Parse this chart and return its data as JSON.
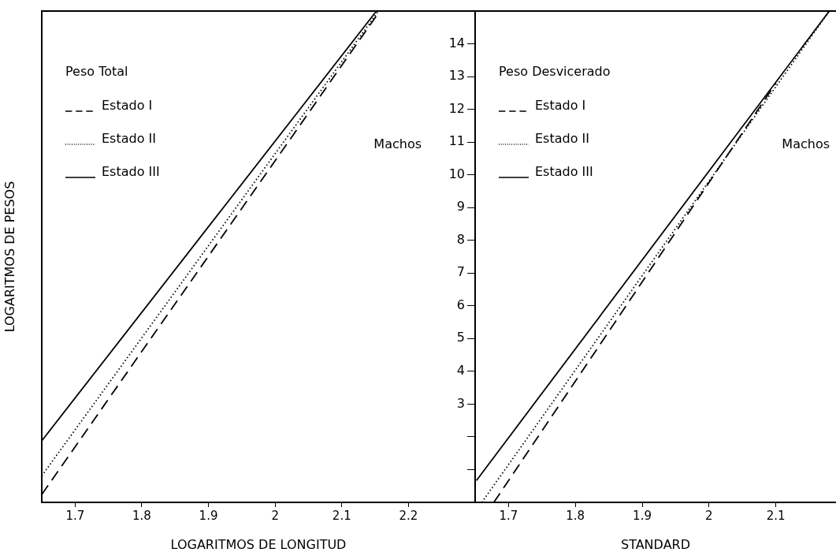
{
  "chart_data": [
    {
      "type": "line",
      "xlabel": "LOGARITMOS DE LONGITUD",
      "ylabel": "LOGARITMOS DE PESOS",
      "legend_title": "Peso Total",
      "legend": "top left",
      "tick_labels": "x",
      "annotations": [
        "Machos"
      ],
      "xlim": [
        1.65,
        2.3
      ],
      "xticks": [
        1.7,
        1.8,
        1.9,
        2.0,
        2.1,
        2.2
      ],
      "ylim": [
        0,
        15
      ],
      "series": [
        {
          "name": "Estado I",
          "color": "#000000",
          "line_style": "dashed",
          "x": [
            1.65,
            2.157
          ],
          "values": [
            0.24,
            15
          ]
        },
        {
          "name": "Estado II",
          "color": "#000000",
          "line_style": "dotted",
          "x": [
            1.65,
            2.155
          ],
          "values": [
            0.81,
            15
          ]
        },
        {
          "name": "Estado III",
          "color": "#000000",
          "line_style": "solid",
          "x": [
            1.65,
            2.152
          ],
          "values": [
            1.88,
            15
          ]
        }
      ]
    },
    {
      "type": "line",
      "xlabel": "STANDARD",
      "legend_title": "Peso Desvicerado",
      "legend": "top left",
      "annotations": [
        "Machos"
      ],
      "xlim": [
        1.65,
        2.19
      ],
      "xticks": [
        1.7,
        1.8,
        1.9,
        2.0,
        2.1
      ],
      "ylim": [
        0,
        15
      ],
      "yticks": [
        {
          "value": 1,
          "label": null
        },
        {
          "value": 2,
          "label": null
        },
        3,
        4,
        5,
        6,
        7,
        8,
        9,
        10,
        11,
        12,
        13,
        14
      ],
      "series": [
        {
          "name": "Estado I",
          "color": "#000000",
          "line_style": "dashed",
          "x": [
            1.678,
            2.1
          ],
          "values": [
            0,
            12.8
          ]
        },
        {
          "name": "Estado II",
          "color": "#000000",
          "line_style": "dotted",
          "x": [
            1.66,
            2.18
          ],
          "values": [
            0,
            15
          ]
        },
        {
          "name": "Estado III",
          "color": "#000000",
          "line_style": "solid",
          "x": [
            1.652,
            2.18
          ],
          "values": [
            0.67,
            15
          ]
        }
      ]
    }
  ]
}
